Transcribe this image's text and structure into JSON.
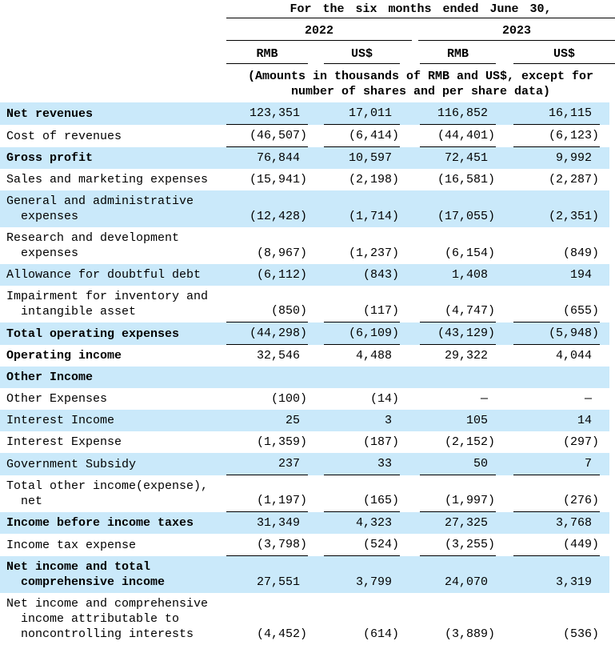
{
  "table": {
    "period_header": "For the six months ended June 30,",
    "year_groups": [
      "2022",
      "2023"
    ],
    "col_headers": [
      "RMB",
      "US$",
      "RMB",
      "US$"
    ],
    "note": "(Amounts in thousands of RMB and US$, except for\nnumber of shares and per share data)",
    "rows": [
      {
        "label": "Net revenues",
        "values": [
          "123,351",
          "17,011",
          "116,852",
          "16,115"
        ]
      },
      {
        "label": "Cost of revenues",
        "values": [
          "(46,507)",
          "(6,414)",
          "(44,401)",
          "(6,123)"
        ]
      },
      {
        "label": "Gross profit",
        "values": [
          "76,844",
          "10,597",
          "72,451",
          "9,992"
        ]
      },
      {
        "label": "Sales and marketing expenses",
        "values": [
          "(15,941)",
          "(2,198)",
          "(16,581)",
          "(2,287)"
        ]
      },
      {
        "label": "General and administrative\n  expenses",
        "values": [
          "(12,428)",
          "(1,714)",
          "(17,055)",
          "(2,351)"
        ]
      },
      {
        "label": "Research and development\n  expenses",
        "values": [
          "(8,967)",
          "(1,237)",
          "(6,154)",
          "(849)"
        ]
      },
      {
        "label": "Allowance for doubtful debt",
        "values": [
          "(6,112)",
          "(843)",
          "1,408",
          "194"
        ]
      },
      {
        "label": "Impairment for inventory and\n  intangible asset",
        "values": [
          "(850)",
          "(117)",
          "(4,747)",
          "(655)"
        ]
      },
      {
        "label": "Total operating expenses",
        "values": [
          "(44,298)",
          "(6,109)",
          "(43,129)",
          "(5,948)"
        ]
      },
      {
        "label": "Operating income",
        "values": [
          "32,546",
          "4,488",
          "29,322",
          "4,044"
        ]
      },
      {
        "label": "Other Income",
        "values": [
          "",
          "",
          "",
          ""
        ]
      },
      {
        "label": "Other Expenses",
        "values": [
          "(100)",
          "(14)",
          "—",
          "—"
        ]
      },
      {
        "label": "Interest Income",
        "values": [
          "25",
          "3",
          "105",
          "14"
        ]
      },
      {
        "label": "Interest Expense",
        "values": [
          "(1,359)",
          "(187)",
          "(2,152)",
          "(297)"
        ]
      },
      {
        "label": "Government Subsidy",
        "values": [
          "237",
          "33",
          "50",
          "7"
        ]
      },
      {
        "label": "Total other income(expense),\n  net",
        "values": [
          "(1,197)",
          "(165)",
          "(1,997)",
          "(276)"
        ]
      },
      {
        "label": "Income before income taxes",
        "values": [
          "31,349",
          "4,323",
          "27,325",
          "3,768"
        ]
      },
      {
        "label": "Income tax expense",
        "values": [
          "(3,798)",
          "(524)",
          "(3,255)",
          "(449)"
        ]
      },
      {
        "label": "Net income and total\n  comprehensive income",
        "values": [
          "27,551",
          "3,799",
          "24,070",
          "3,319"
        ]
      },
      {
        "label": "Net income and comprehensive\n  income attributable to\n  noncontrolling interests",
        "values": [
          "(4,452)",
          "(614)",
          "(3,889)",
          "(536)"
        ]
      }
    ],
    "colors": {
      "row_highlight": "#cae9fa",
      "rule": "#000000",
      "text": "#000000"
    }
  }
}
